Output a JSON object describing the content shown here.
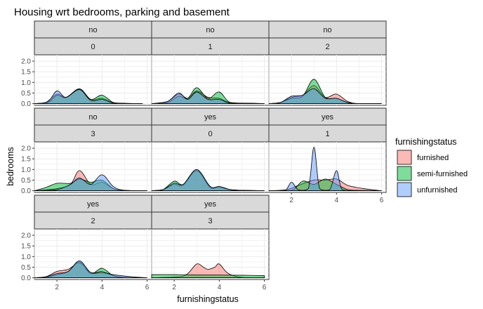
{
  "chart_data": {
    "type": "area",
    "title": "Housing wrt bedrooms, parking and basement",
    "xlabel": "furnishingstatus",
    "ylabel": "bedrooms",
    "x_ticks": [
      2,
      4,
      6
    ],
    "y_ticks": [
      "0.0",
      "0.5",
      "1.0",
      "1.5",
      "2.0"
    ],
    "xlim": [
      1,
      6.2
    ],
    "ylim": [
      -0.08,
      2.3
    ],
    "grid": true,
    "legend": {
      "title": "furnishingstatus",
      "position": "right",
      "entries": [
        {
          "label": "furnished",
          "color": "#F8766D"
        },
        {
          "label": "semi-furnished",
          "color": "#00BA38"
        },
        {
          "label": "unfurnished",
          "color": "#619CFF"
        }
      ]
    },
    "panels": [
      {
        "strip1": "no",
        "strip2": "0",
        "series": {
          "furnished": [
            [
              1,
              0
            ],
            [
              1.5,
              0.05
            ],
            [
              2,
              0.45
            ],
            [
              2.4,
              0.3
            ],
            [
              3,
              0.68
            ],
            [
              3.5,
              0.2
            ],
            [
              4,
              0.25
            ],
            [
              4.5,
              0.05
            ],
            [
              5,
              0.02
            ],
            [
              5.8,
              0
            ]
          ],
          "semi-furnished": [
            [
              1,
              0
            ],
            [
              1.6,
              0.05
            ],
            [
              2,
              0.4
            ],
            [
              2.4,
              0.28
            ],
            [
              3,
              0.7
            ],
            [
              3.5,
              0.2
            ],
            [
              4,
              0.4
            ],
            [
              4.5,
              0.05
            ],
            [
              5,
              0.01
            ],
            [
              5.8,
              0
            ]
          ],
          "unfurnished": [
            [
              1,
              0
            ],
            [
              1.6,
              0.1
            ],
            [
              2,
              0.6
            ],
            [
              2.4,
              0.3
            ],
            [
              3,
              0.66
            ],
            [
              3.5,
              0.15
            ],
            [
              4,
              0.2
            ],
            [
              4.5,
              0.02
            ],
            [
              5,
              0.01
            ],
            [
              5.8,
              0
            ]
          ]
        }
      },
      {
        "strip1": "no",
        "strip2": "1",
        "series": {
          "furnished": [
            [
              1,
              0
            ],
            [
              1.7,
              0.1
            ],
            [
              2.2,
              0.45
            ],
            [
              2.6,
              0.25
            ],
            [
              3,
              0.6
            ],
            [
              3.5,
              0.3
            ],
            [
              4,
              0.25
            ],
            [
              4.5,
              0.05
            ],
            [
              5.5,
              0.02
            ],
            [
              6,
              0
            ]
          ],
          "semi-furnished": [
            [
              1,
              0
            ],
            [
              1.7,
              0.05
            ],
            [
              2.2,
              0.35
            ],
            [
              2.6,
              0.25
            ],
            [
              3,
              0.75
            ],
            [
              3.5,
              0.25
            ],
            [
              4,
              0.55
            ],
            [
              4.5,
              0.05
            ],
            [
              5.5,
              0.01
            ],
            [
              6,
              0
            ]
          ],
          "unfurnished": [
            [
              1,
              0
            ],
            [
              1.7,
              0.1
            ],
            [
              2.2,
              0.5
            ],
            [
              2.6,
              0.2
            ],
            [
              3,
              0.55
            ],
            [
              3.5,
              0.2
            ],
            [
              4,
              0.2
            ],
            [
              4.5,
              0.02
            ],
            [
              5.5,
              0.01
            ],
            [
              6,
              0
            ]
          ]
        }
      },
      {
        "strip1": "no",
        "strip2": "2",
        "series": {
          "furnished": [
            [
              1,
              0
            ],
            [
              1.5,
              0.05
            ],
            [
              2,
              0.3
            ],
            [
              2.5,
              0.4
            ],
            [
              3,
              0.85
            ],
            [
              3.5,
              0.3
            ],
            [
              4,
              0.45
            ],
            [
              4.5,
              0.1
            ],
            [
              5,
              0
            ],
            [
              6,
              0
            ]
          ],
          "semi-furnished": [
            [
              1,
              0
            ],
            [
              1.5,
              0.05
            ],
            [
              2,
              0.25
            ],
            [
              2.5,
              0.35
            ],
            [
              3,
              1.15
            ],
            [
              3.5,
              0.3
            ],
            [
              4,
              0.25
            ],
            [
              4.5,
              0.05
            ],
            [
              5,
              0
            ],
            [
              6,
              0
            ]
          ],
          "unfurnished": [
            [
              1,
              0
            ],
            [
              1.5,
              0.05
            ],
            [
              2,
              0.35
            ],
            [
              2.5,
              0.4
            ],
            [
              3,
              0.7
            ],
            [
              3.5,
              0.25
            ],
            [
              4,
              0.25
            ],
            [
              4.5,
              0.05
            ],
            [
              5,
              0
            ],
            [
              6,
              0
            ]
          ]
        }
      },
      {
        "strip1": "no",
        "strip2": "3",
        "series": {
          "furnished": [
            [
              1,
              0
            ],
            [
              2,
              0.1
            ],
            [
              2.6,
              0.3
            ],
            [
              3,
              0.95
            ],
            [
              3.5,
              0.3
            ],
            [
              4,
              0.4
            ],
            [
              4.5,
              0.1
            ],
            [
              5,
              0.02
            ],
            [
              6,
              0
            ]
          ],
          "semi-furnished": [
            [
              1,
              0
            ],
            [
              1.5,
              0.15
            ],
            [
              2,
              0.35
            ],
            [
              2.6,
              0.35
            ],
            [
              3,
              0.55
            ],
            [
              3.5,
              0.4
            ],
            [
              4,
              0.5
            ],
            [
              4.5,
              0.1
            ],
            [
              5,
              0.02
            ],
            [
              6,
              0
            ]
          ],
          "unfurnished": [
            [
              1,
              0
            ],
            [
              2,
              0.05
            ],
            [
              2.6,
              0.3
            ],
            [
              3,
              0.6
            ],
            [
              3.5,
              0.3
            ],
            [
              4,
              0.75
            ],
            [
              4.5,
              0.2
            ],
            [
              5,
              0.02
            ],
            [
              6,
              0
            ]
          ]
        }
      },
      {
        "strip1": "yes",
        "strip2": "0",
        "series": {
          "furnished": [
            [
              1,
              0
            ],
            [
              1.5,
              0.05
            ],
            [
              2,
              0.3
            ],
            [
              2.4,
              0.25
            ],
            [
              3,
              0.95
            ],
            [
              3.6,
              0.2
            ],
            [
              4,
              0.15
            ],
            [
              4.5,
              0.05
            ],
            [
              5,
              0.02
            ],
            [
              6,
              0
            ]
          ],
          "semi-furnished": [
            [
              1,
              0
            ],
            [
              1.5,
              0.05
            ],
            [
              2,
              0.45
            ],
            [
              2.4,
              0.3
            ],
            [
              3,
              0.95
            ],
            [
              3.6,
              0.15
            ],
            [
              4,
              0.2
            ],
            [
              4.5,
              0.05
            ],
            [
              5,
              0.02
            ],
            [
              6,
              0
            ]
          ],
          "unfurnished": [
            [
              1,
              0
            ],
            [
              1.5,
              0.05
            ],
            [
              2,
              0.35
            ],
            [
              2.4,
              0.3
            ],
            [
              3,
              1.0
            ],
            [
              3.6,
              0.2
            ],
            [
              4,
              0.2
            ],
            [
              4.5,
              0.05
            ],
            [
              5,
              0.02
            ],
            [
              6,
              0
            ]
          ]
        }
      },
      {
        "strip1": "yes",
        "strip2": "1",
        "series": {
          "furnished": [
            [
              1,
              0
            ],
            [
              1.8,
              0.05
            ],
            [
              2.3,
              0.25
            ],
            [
              3,
              0.5
            ],
            [
              3.5,
              0.5
            ],
            [
              4,
              0.55
            ],
            [
              4.5,
              0.25
            ],
            [
              5.2,
              0.1
            ],
            [
              6,
              0
            ]
          ],
          "semi-furnished": [
            [
              1,
              0
            ],
            [
              2,
              0.02
            ],
            [
              2.5,
              0.45
            ],
            [
              3,
              0.3
            ],
            [
              3.5,
              0.55
            ],
            [
              4,
              0.3
            ],
            [
              4.5,
              0.05
            ],
            [
              5,
              0.02
            ],
            [
              6,
              0
            ]
          ],
          "unfurnished": [
            [
              1,
              0
            ],
            [
              1.7,
              0
            ],
            [
              2,
              0.4
            ],
            [
              2.3,
              0.05
            ],
            [
              2.75,
              0.1
            ],
            [
              3,
              2.05
            ],
            [
              3.25,
              0.1
            ],
            [
              3.7,
              0.05
            ],
            [
              4,
              0.95
            ],
            [
              4.25,
              0.05
            ],
            [
              4.8,
              0
            ],
            [
              6,
              0
            ]
          ]
        }
      },
      {
        "strip1": "yes",
        "strip2": "2",
        "series": {
          "furnished": [
            [
              1,
              0
            ],
            [
              1.5,
              0.05
            ],
            [
              2,
              0.3
            ],
            [
              2.5,
              0.4
            ],
            [
              3,
              0.7
            ],
            [
              3.5,
              0.25
            ],
            [
              4,
              0.3
            ],
            [
              4.5,
              0.1
            ],
            [
              5,
              0.02
            ],
            [
              6,
              0
            ]
          ],
          "semi-furnished": [
            [
              1,
              0
            ],
            [
              1.5,
              0.02
            ],
            [
              2,
              0.15
            ],
            [
              2.5,
              0.3
            ],
            [
              3,
              0.75
            ],
            [
              3.5,
              0.2
            ],
            [
              4,
              0.45
            ],
            [
              4.5,
              0.1
            ],
            [
              5,
              0.02
            ],
            [
              6,
              0
            ]
          ],
          "unfurnished": [
            [
              1,
              0
            ],
            [
              1.5,
              0.05
            ],
            [
              2,
              0.2
            ],
            [
              2.5,
              0.3
            ],
            [
              3,
              0.8
            ],
            [
              3.5,
              0.25
            ],
            [
              4,
              0.25
            ],
            [
              4.5,
              0.15
            ],
            [
              5.3,
              0.05
            ],
            [
              6,
              0
            ]
          ]
        }
      },
      {
        "strip1": "yes",
        "strip2": "3",
        "series": {
          "furnished": [
            [
              1,
              0
            ],
            [
              2.2,
              0.05
            ],
            [
              2.6,
              0.2
            ],
            [
              3,
              0.65
            ],
            [
              3.3,
              0.5
            ],
            [
              3.5,
              0.4
            ],
            [
              3.8,
              0.5
            ],
            [
              4,
              0.65
            ],
            [
              4.4,
              0.2
            ],
            [
              5,
              0.02
            ],
            [
              6,
              0
            ]
          ],
          "semi-furnished": [
            [
              1,
              0.15
            ],
            [
              2,
              0.15
            ],
            [
              3,
              0.14
            ],
            [
              4,
              0.13
            ],
            [
              5,
              0.12
            ],
            [
              6,
              0.1
            ]
          ],
          "unfurnished": []
        }
      }
    ]
  }
}
